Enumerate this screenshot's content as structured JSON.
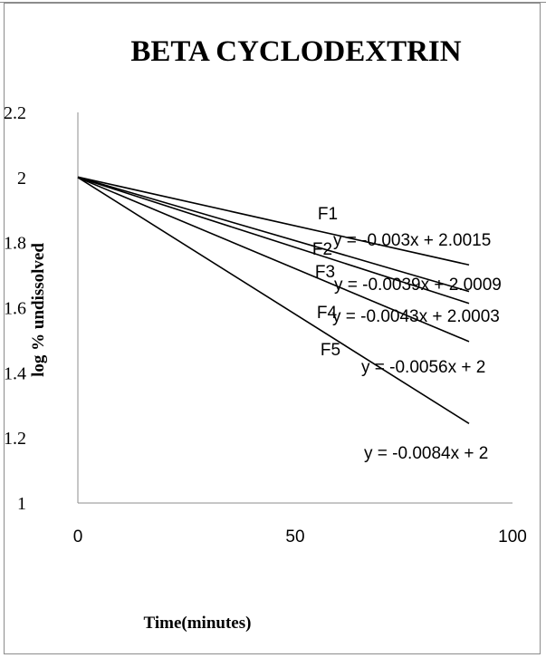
{
  "chart_data": {
    "type": "line",
    "title": "BETA CYCLODEXTRIN",
    "xlabel": "Time(minutes)",
    "ylabel": "log % undissolved",
    "xlim": [
      0,
      100
    ],
    "ylim": [
      1,
      2.2
    ],
    "x_ticks": [
      "0",
      "50",
      "100"
    ],
    "y_ticks": [
      "1",
      "1.2",
      "1.4",
      "1.6",
      "1.8",
      "2",
      "2.2"
    ],
    "series": [
      {
        "name": "F1",
        "x": [
          0,
          90
        ],
        "y": [
          2.0015,
          1.7315
        ],
        "equation": "y = -0.003x + 2.0015"
      },
      {
        "name": "F2",
        "x": [
          0,
          90
        ],
        "y": [
          2.0009,
          1.6499
        ],
        "equation": "y = -0.0039x + 2.0009"
      },
      {
        "name": "F3",
        "x": [
          0,
          90
        ],
        "y": [
          2.0003,
          1.6133
        ],
        "equation": "y = -0.0043x + 2.0003"
      },
      {
        "name": "F4",
        "x": [
          0,
          90
        ],
        "y": [
          2.0,
          1.496
        ],
        "equation": "y = -0.0056x + 2"
      },
      {
        "name": "F5",
        "x": [
          0,
          90
        ],
        "y": [
          2.0,
          1.244
        ],
        "equation": "y = -0.0084x + 2"
      }
    ],
    "grid": false,
    "legend": "none",
    "line_color": "#000000"
  }
}
